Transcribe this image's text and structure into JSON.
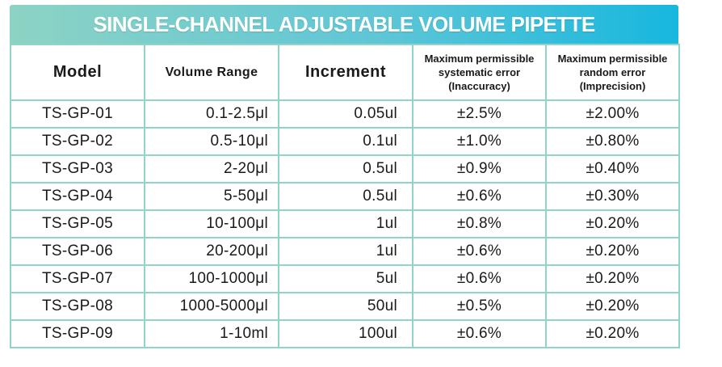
{
  "title": "SINGLE-CHANNEL ADJUSTABLE VOLUME PIPETTE",
  "headers": {
    "model": "Model",
    "volume_range": "Volume Range",
    "increment": "Increment",
    "systematic": [
      "Maximum permissible",
      "systematic error",
      "(Inaccuracy)"
    ],
    "random": [
      "Maximum permissible",
      "random error",
      "(Imprecision)"
    ]
  },
  "rows": [
    {
      "model": "TS-GP-01",
      "range": "0.1-2.5μl",
      "increment": "0.05ul",
      "systematic": "±2.5%",
      "random": "±2.00%"
    },
    {
      "model": "TS-GP-02",
      "range": "0.5-10μl",
      "increment": "0.1ul",
      "systematic": "±1.0%",
      "random": "±0.80%"
    },
    {
      "model": "TS-GP-03",
      "range": "2-20μl",
      "increment": "0.5ul",
      "systematic": "±0.9%",
      "random": "±0.40%"
    },
    {
      "model": "TS-GP-04",
      "range": "5-50μl",
      "increment": "0.5ul",
      "systematic": "±0.6%",
      "random": "±0.30%"
    },
    {
      "model": "TS-GP-05",
      "range": "10-100μl",
      "increment": "1ul",
      "systematic": "±0.8%",
      "random": "±0.20%"
    },
    {
      "model": "TS-GP-06",
      "range": "20-200μl",
      "increment": "1ul",
      "systematic": "±0.6%",
      "random": "±0.20%"
    },
    {
      "model": "TS-GP-07",
      "range": "100-1000μl",
      "increment": "5ul",
      "systematic": "±0.6%",
      "random": "±0.20%"
    },
    {
      "model": "TS-GP-08",
      "range": "1000-5000μl",
      "increment": "50ul",
      "systematic": "±0.5%",
      "random": "±0.20%"
    },
    {
      "model": "TS-GP-09",
      "range": "1-10ml",
      "increment": "100ul",
      "systematic": "±0.6%",
      "random": "±0.20%"
    }
  ],
  "colors": {
    "banner_start": "#8dd3c4",
    "banner_end": "#17b7de",
    "border": "#8fd4c6"
  }
}
